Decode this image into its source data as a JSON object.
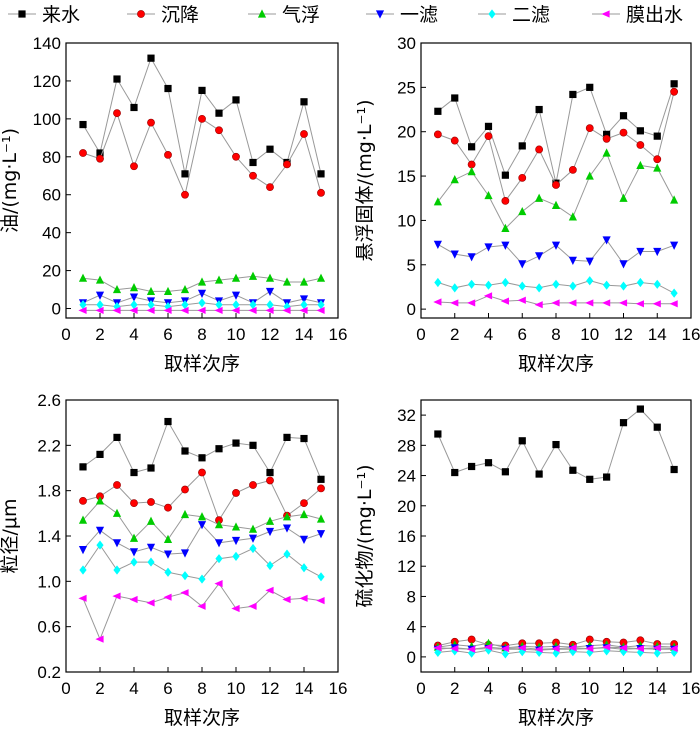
{
  "legend": [
    {
      "name": "来水",
      "color": "#000000",
      "marker": "square"
    },
    {
      "name": "沉降",
      "color": "#ff0000",
      "marker": "circle"
    },
    {
      "name": "气浮",
      "color": "#00cc00",
      "marker": "triangle-up"
    },
    {
      "name": "一滤",
      "color": "#0000ff",
      "marker": "triangle-down"
    },
    {
      "name": "二滤",
      "color": "#00ffff",
      "marker": "diamond"
    },
    {
      "name": "膜出水",
      "color": "#ff00ff",
      "marker": "triangle-left"
    }
  ],
  "line_color": "#999999",
  "chart_data": [
    {
      "type": "line",
      "xlabel": "取样次序",
      "ylabel": "油/(mg·L⁻¹)",
      "xlim": [
        0,
        16
      ],
      "ylim": [
        -5,
        140
      ],
      "xticks": [
        0,
        2,
        4,
        6,
        8,
        10,
        12,
        14,
        16
      ],
      "yticks": [
        0,
        20,
        40,
        60,
        80,
        100,
        120,
        140
      ],
      "ytick_labels": [
        "0",
        "20",
        "40",
        "60",
        "80",
        "100",
        "120",
        "140"
      ],
      "x": [
        1,
        2,
        3,
        4,
        5,
        6,
        7,
        8,
        9,
        10,
        11,
        12,
        13,
        14,
        15
      ],
      "series": [
        {
          "name": "来水",
          "values": [
            97,
            82,
            121,
            106,
            132,
            116,
            71,
            115,
            103,
            110,
            77,
            84,
            77,
            109,
            71
          ]
        },
        {
          "name": "沉降",
          "values": [
            82,
            79,
            103,
            75,
            98,
            81,
            60,
            100,
            94,
            80,
            70,
            64,
            76,
            92,
            61
          ]
        },
        {
          "name": "气浮",
          "values": [
            16,
            15,
            10,
            11,
            9,
            9,
            10,
            14,
            15,
            16,
            17,
            16,
            14,
            14,
            16
          ]
        },
        {
          "name": "一滤",
          "values": [
            3,
            7,
            3,
            6,
            4,
            3,
            4,
            8,
            4,
            7,
            3,
            9,
            3,
            5,
            3
          ]
        },
        {
          "name": "二滤",
          "values": [
            2,
            2,
            1,
            2,
            2,
            1,
            2,
            3,
            2,
            2,
            2,
            2,
            1,
            2,
            2
          ]
        },
        {
          "name": "膜出水",
          "values": [
            -1,
            -1,
            -1,
            -1,
            -1,
            -1,
            -1,
            -1,
            -1,
            -1,
            -1,
            -1,
            -1,
            -1,
            -1
          ]
        }
      ]
    },
    {
      "type": "line",
      "xlabel": "取样次序",
      "ylabel": "悬浮固体/(mg·L⁻¹)",
      "xlim": [
        0,
        16
      ],
      "ylim": [
        -1,
        30
      ],
      "xticks": [
        0,
        2,
        4,
        6,
        8,
        10,
        12,
        14,
        16
      ],
      "yticks": [
        0,
        5,
        10,
        15,
        20,
        25,
        30
      ],
      "ytick_labels": [
        "0",
        "5",
        "10",
        "15",
        "20",
        "25",
        "30"
      ],
      "x": [
        1,
        2,
        3,
        4,
        5,
        6,
        7,
        8,
        9,
        10,
        11,
        12,
        13,
        14,
        15
      ],
      "series": [
        {
          "name": "来水",
          "values": [
            22.3,
            23.8,
            18.3,
            20.6,
            15.1,
            18.4,
            22.5,
            14.2,
            24.2,
            25.0,
            19.7,
            21.8,
            20.1,
            19.5,
            25.4
          ]
        },
        {
          "name": "沉降",
          "values": [
            19.7,
            19.0,
            16.3,
            19.5,
            12.2,
            14.8,
            18.0,
            14.0,
            15.7,
            20.4,
            19.2,
            19.9,
            18.5,
            16.9,
            24.5
          ]
        },
        {
          "name": "气浮",
          "values": [
            12.1,
            14.6,
            15.5,
            12.8,
            9.1,
            11.0,
            12.5,
            11.7,
            10.4,
            15.0,
            17.6,
            12.5,
            16.2,
            15.9,
            12.3
          ]
        },
        {
          "name": "一滤",
          "values": [
            7.3,
            6.2,
            5.9,
            7.0,
            7.2,
            5.1,
            6.0,
            7.2,
            5.5,
            5.4,
            7.8,
            5.1,
            6.5,
            6.5,
            7.2
          ]
        },
        {
          "name": "二滤",
          "values": [
            3.0,
            2.4,
            2.8,
            2.7,
            3.0,
            2.6,
            2.4,
            2.8,
            2.6,
            3.2,
            2.7,
            2.6,
            3.0,
            2.8,
            1.8
          ]
        },
        {
          "name": "膜出水",
          "values": [
            0.8,
            0.7,
            0.7,
            1.5,
            0.9,
            1.0,
            0.5,
            0.7,
            0.7,
            0.7,
            0.7,
            0.7,
            0.6,
            0.6,
            0.6
          ]
        }
      ]
    },
    {
      "type": "line",
      "xlabel": "取样次序",
      "ylabel": "粒径/μm",
      "xlim": [
        0,
        16
      ],
      "ylim": [
        0.2,
        2.6
      ],
      "xticks": [
        0,
        2,
        4,
        6,
        8,
        10,
        12,
        14,
        16
      ],
      "yticks": [
        0.2,
        0.6,
        1.0,
        1.4,
        1.8,
        2.2,
        2.6
      ],
      "ytick_labels": [
        "0.2",
        "0.6",
        "1.0",
        "1.4",
        "1.8",
        "2.2",
        "2.6"
      ],
      "x": [
        1,
        2,
        3,
        4,
        5,
        6,
        7,
        8,
        9,
        10,
        11,
        12,
        13,
        14,
        15
      ],
      "series": [
        {
          "name": "来水",
          "values": [
            2.01,
            2.12,
            2.27,
            1.96,
            2.0,
            2.41,
            2.15,
            2.09,
            2.17,
            2.22,
            2.2,
            1.96,
            2.27,
            2.26,
            1.9
          ]
        },
        {
          "name": "沉降",
          "values": [
            1.71,
            1.75,
            1.85,
            1.69,
            1.7,
            1.65,
            1.81,
            1.96,
            1.54,
            1.78,
            1.85,
            1.89,
            1.58,
            1.69,
            1.82
          ]
        },
        {
          "name": "气浮",
          "values": [
            1.54,
            1.71,
            1.6,
            1.38,
            1.53,
            1.37,
            1.59,
            1.57,
            1.5,
            1.48,
            1.46,
            1.53,
            1.57,
            1.59,
            1.55
          ]
        },
        {
          "name": "一滤",
          "values": [
            1.28,
            1.45,
            1.34,
            1.26,
            1.3,
            1.24,
            1.25,
            1.5,
            1.34,
            1.36,
            1.38,
            1.44,
            1.47,
            1.37,
            1.42
          ]
        },
        {
          "name": "二滤",
          "values": [
            1.1,
            1.32,
            1.1,
            1.17,
            1.17,
            1.08,
            1.05,
            1.02,
            1.2,
            1.22,
            1.29,
            1.14,
            1.24,
            1.12,
            1.04
          ]
        },
        {
          "name": "膜出水",
          "values": [
            0.85,
            0.49,
            0.87,
            0.84,
            0.81,
            0.86,
            0.9,
            0.78,
            0.98,
            0.76,
            0.78,
            0.92,
            0.84,
            0.85,
            0.83
          ]
        }
      ]
    },
    {
      "type": "line",
      "xlabel": "取样次序",
      "ylabel": "硫化物/(mg·L⁻¹)",
      "xlim": [
        0,
        16
      ],
      "ylim": [
        -2,
        34
      ],
      "xticks": [
        0,
        2,
        4,
        6,
        8,
        10,
        12,
        14,
        16
      ],
      "yticks": [
        0,
        4,
        8,
        12,
        16,
        20,
        24,
        28,
        32
      ],
      "ytick_labels": [
        "0",
        "4",
        "8",
        "12",
        "16",
        "20",
        "24",
        "28",
        "32"
      ],
      "x": [
        1,
        2,
        3,
        4,
        5,
        6,
        7,
        8,
        9,
        10,
        11,
        12,
        13,
        14,
        15
      ],
      "series": [
        {
          "name": "来水",
          "values": [
            29.5,
            24.4,
            25.2,
            25.7,
            24.5,
            28.6,
            24.2,
            28.1,
            24.7,
            23.5,
            23.8,
            31.0,
            32.8,
            30.4,
            24.8
          ]
        },
        {
          "name": "沉降",
          "values": [
            1.5,
            2.0,
            2.3,
            1.6,
            1.5,
            1.8,
            1.8,
            1.9,
            1.6,
            2.3,
            2.0,
            1.9,
            2.2,
            1.7,
            1.7
          ]
        },
        {
          "name": "气浮",
          "values": [
            1.3,
            1.6,
            1.4,
            1.8,
            1.2,
            1.4,
            1.3,
            1.4,
            1.3,
            1.5,
            1.6,
            1.3,
            1.5,
            1.4,
            1.3
          ]
        },
        {
          "name": "一滤",
          "values": [
            1.0,
            1.2,
            1.0,
            1.1,
            1.0,
            1.0,
            0.9,
            1.0,
            1.0,
            1.1,
            1.2,
            1.0,
            1.1,
            1.0,
            1.0
          ]
        },
        {
          "name": "二滤",
          "values": [
            0.6,
            0.8,
            0.5,
            0.9,
            0.4,
            0.7,
            0.6,
            0.5,
            0.7,
            0.6,
            0.8,
            0.7,
            0.6,
            0.5,
            0.6
          ]
        },
        {
          "name": "膜出水",
          "values": [
            1.2,
            1.1,
            1.0,
            1.3,
            1.1,
            1.2,
            1.0,
            1.1,
            1.2,
            1.1,
            1.3,
            1.2,
            1.1,
            1.2,
            1.1
          ]
        }
      ]
    }
  ]
}
